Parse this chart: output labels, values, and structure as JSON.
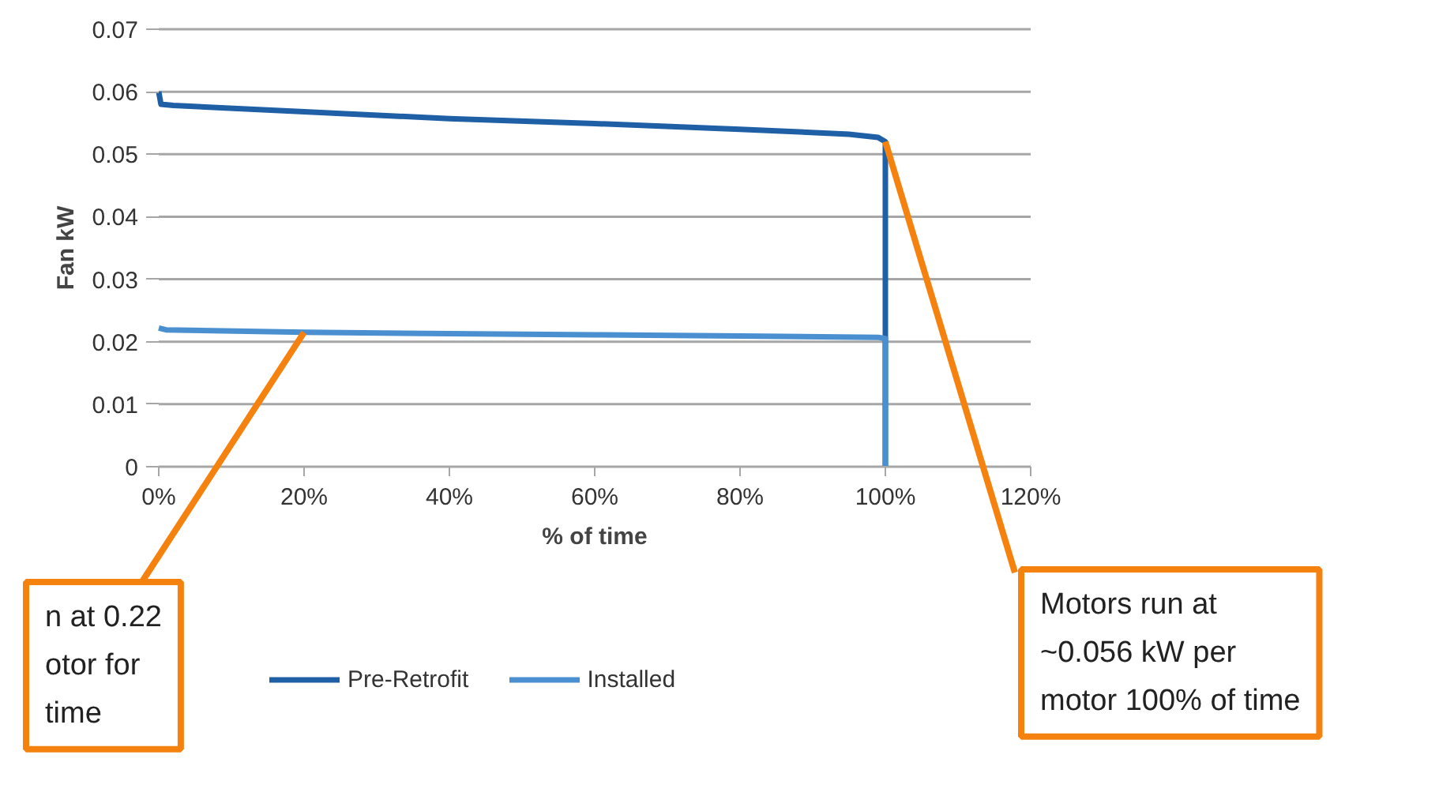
{
  "chart_data": {
    "type": "line",
    "xlabel": "% of time",
    "ylabel": "Fan kW",
    "xlim": [
      0,
      120
    ],
    "ylim": [
      0,
      0.07
    ],
    "xticks": [
      {
        "value": 0,
        "label": "0%"
      },
      {
        "value": 20,
        "label": "20%"
      },
      {
        "value": 40,
        "label": "40%"
      },
      {
        "value": 60,
        "label": "60%"
      },
      {
        "value": 80,
        "label": "80%"
      },
      {
        "value": 100,
        "label": "100%"
      },
      {
        "value": 120,
        "label": "120%"
      }
    ],
    "yticks": [
      0,
      0.01,
      0.02,
      0.03,
      0.04,
      0.05,
      0.06,
      0.07
    ],
    "grid": "y",
    "legend": "bottom",
    "line_style": "solid",
    "series": [
      {
        "name": "Pre-Retrofit",
        "color": "#1f5fa6",
        "x": [
          0,
          0.3,
          2,
          20,
          40,
          60,
          80,
          95,
          99,
          100,
          100
        ],
        "values": [
          0.06,
          0.058,
          0.0578,
          0.0568,
          0.0557,
          0.0549,
          0.054,
          0.0532,
          0.0527,
          0.052,
          0
        ]
      },
      {
        "name": "Installed",
        "color": "#4a90d0",
        "x": [
          0,
          1,
          20,
          40,
          60,
          80,
          99,
          100,
          100
        ],
        "values": [
          0.0222,
          0.0219,
          0.0215,
          0.0213,
          0.0211,
          0.0209,
          0.0207,
          0.0205,
          0
        ]
      }
    ],
    "annotations": [
      {
        "text": "n at 0.22\notor for\ntime",
        "x": 20,
        "y": 0.0215
      },
      {
        "text": "Motors run at\n~0.056 kW per\nmotor 100% of time",
        "x": 100,
        "y": 0.052
      }
    ]
  }
}
